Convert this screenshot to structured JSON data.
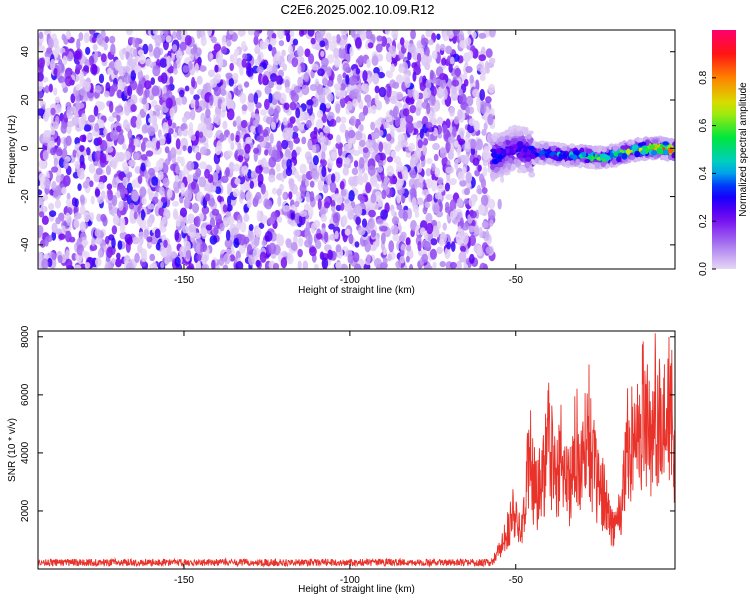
{
  "title": "C2E6.2025.002.10.09.R12",
  "chart_data": [
    {
      "type": "heatmap",
      "name": "spectrogram",
      "xlabel": "Height of straight line (km)",
      "ylabel": "Frequency (Hz)",
      "xlim": [
        -194,
        -2
      ],
      "ylim": [
        -50,
        49
      ],
      "xticks": [
        -150,
        -100,
        -50
      ],
      "yticks": [
        -40,
        -20,
        0,
        20,
        40
      ],
      "description_of_values": "normalized spectral amplitude; noise-only region (about 0.1-0.3, purple) for x < -57; signal band near 0 Hz from -57 to -2 km, amplitude rising toward the right",
      "signal_track": [
        {
          "x": -55,
          "freq": -3,
          "amp": 0.35
        },
        {
          "x": -50,
          "freq": 0,
          "amp": 0.3
        },
        {
          "x": -45,
          "freq": -2,
          "amp": 0.4
        },
        {
          "x": -40,
          "freq": -2,
          "amp": 0.45
        },
        {
          "x": -35,
          "freq": -3,
          "amp": 0.5
        },
        {
          "x": -30,
          "freq": -3,
          "amp": 0.55
        },
        {
          "x": -25,
          "freq": -4,
          "amp": 0.6
        },
        {
          "x": -20,
          "freq": -3,
          "amp": 0.65
        },
        {
          "x": -15,
          "freq": -1,
          "amp": 0.75
        },
        {
          "x": -10,
          "freq": 0,
          "amp": 0.85
        },
        {
          "x": -5,
          "freq": 0,
          "amp": 0.9
        },
        {
          "x": -2,
          "freq": -1,
          "amp": 0.8
        }
      ]
    },
    {
      "type": "colorbar",
      "label": "Normalized spectral amplitude",
      "range": [
        0,
        1
      ],
      "ticks": [
        0.0,
        0.2,
        0.4,
        0.6,
        0.8
      ],
      "tick_labels": [
        "0.0",
        "0.2",
        "0.4",
        "0.6",
        "0.8"
      ]
    },
    {
      "type": "line",
      "xlabel": "Height of straight line (km)",
      "ylabel": "SNR (10 * v/v)",
      "xlim": [
        -194,
        -2
      ],
      "ylim": [
        0,
        8200
      ],
      "xticks": [
        -150,
        -100,
        -50
      ],
      "yticks": [
        2000,
        4000,
        6000,
        8000
      ],
      "color": "#e8322a",
      "x": [
        -194,
        -150,
        -100,
        -60,
        -57,
        -54,
        -51,
        -48,
        -46,
        -44,
        -42,
        -40,
        -38,
        -36,
        -34,
        -32,
        -30,
        -28,
        -26,
        -24,
        -22,
        -20,
        -18,
        -16,
        -14,
        -12,
        -10,
        -8,
        -6,
        -4,
        -2
      ],
      "values": [
        200,
        220,
        180,
        200,
        350,
        1200,
        2600,
        1800,
        5500,
        3500,
        4500,
        6200,
        4000,
        5500,
        3700,
        6000,
        4500,
        7000,
        4200,
        3700,
        2500,
        2000,
        3000,
        6800,
        5500,
        7700,
        6500,
        8100,
        5800,
        7600,
        6200
      ],
      "baseline_noise": [
        100,
        350
      ]
    }
  ]
}
